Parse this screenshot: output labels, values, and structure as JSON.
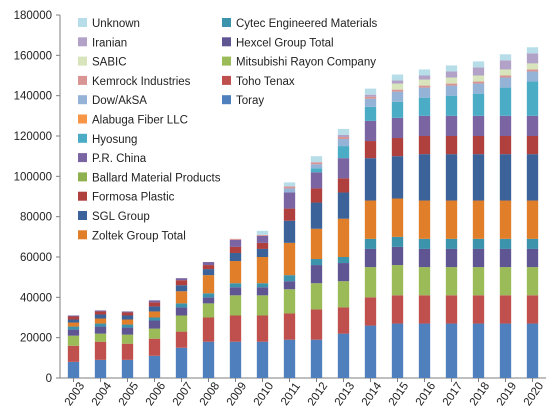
{
  "chart_data": {
    "type": "bar",
    "stacked": true,
    "title": "",
    "xlabel": "",
    "ylabel": "",
    "ylim": [
      0,
      180000
    ],
    "y_ticks": [
      "0",
      "20000",
      "40000",
      "60000",
      "80000",
      "100000",
      "120000",
      "140000",
      "160000",
      "180000"
    ],
    "grid": false,
    "legend_position": "top-left, inside plot, two columns",
    "categories": [
      "2003",
      "2004",
      "2005",
      "2006",
      "2007",
      "2008",
      "2009",
      "2010",
      "2011",
      "2012",
      "2013",
      "2014",
      "2015",
      "2016",
      "2017",
      "2018",
      "2019",
      "2020"
    ],
    "series": [
      {
        "name": "Toray",
        "color": "#4f7fbd",
        "values": [
          8000,
          9000,
          9000,
          11000,
          15000,
          18000,
          18000,
          18000,
          19000,
          19000,
          22000,
          26000,
          27000,
          27000,
          27000,
          27000,
          27000,
          27000
        ]
      },
      {
        "name": "Toho Tenax",
        "color": "#c0504d",
        "values": [
          8000,
          9000,
          8000,
          8500,
          8000,
          12000,
          13000,
          13000,
          13000,
          15000,
          13000,
          14000,
          14000,
          14000,
          14000,
          14000,
          14000,
          14000
        ]
      },
      {
        "name": "Mitsubishi Rayon Company",
        "color": "#9bbb59",
        "values": [
          5000,
          4000,
          4500,
          5000,
          8000,
          7000,
          10000,
          10000,
          12000,
          13000,
          13000,
          15000,
          15000,
          14000,
          14000,
          14000,
          14000,
          14000
        ]
      },
      {
        "name": "Hexcel Group Total",
        "color": "#5f5593",
        "values": [
          3000,
          3500,
          3500,
          4000,
          4000,
          3000,
          4000,
          4000,
          4000,
          9000,
          9000,
          9000,
          9000,
          9000,
          9000,
          9000,
          9000,
          9000
        ]
      },
      {
        "name": "Cytec Engineered Materials",
        "color": "#3c93ac",
        "values": [
          1500,
          1500,
          1500,
          1500,
          2000,
          2000,
          2000,
          2000,
          3000,
          3000,
          3000,
          5000,
          5000,
          5000,
          5000,
          5000,
          5000,
          5000
        ]
      },
      {
        "name": "Zoltek Group Total",
        "color": "#e07e2a",
        "values": [
          2000,
          2500,
          2500,
          3000,
          6000,
          9000,
          11000,
          13000,
          16000,
          15000,
          19000,
          19000,
          19000,
          19000,
          19000,
          19000,
          19000,
          19000
        ]
      },
      {
        "name": "SGL Group",
        "color": "#3c6399",
        "values": [
          1500,
          2000,
          2000,
          2500,
          3000,
          3000,
          4000,
          4000,
          11000,
          13000,
          13000,
          21000,
          21000,
          23000,
          23000,
          23000,
          23000,
          23000
        ]
      },
      {
        "name": "Formosa Plastic",
        "color": "#b0403d",
        "values": [
          1500,
          1500,
          1500,
          2000,
          2500,
          2000,
          3000,
          3000,
          6000,
          7000,
          7000,
          8500,
          9000,
          9000,
          9000,
          9000,
          9000,
          9000
        ]
      },
      {
        "name": "Ballard Material Products",
        "color": "#8fb04f",
        "values": [
          0,
          0,
          0,
          0,
          0,
          0,
          0,
          0,
          0,
          0,
          0,
          0,
          0,
          0,
          0,
          0,
          0,
          0
        ]
      },
      {
        "name": "P.R. China",
        "color": "#7b64a2",
        "values": [
          500,
          500,
          500,
          1000,
          1000,
          1500,
          3500,
          3500,
          8000,
          8000,
          10000,
          10000,
          10000,
          10000,
          10000,
          10000,
          10000,
          10000
        ]
      },
      {
        "name": "Hyosung",
        "color": "#4bacc6",
        "values": [
          0,
          0,
          0,
          0,
          0,
          0,
          0,
          0,
          0,
          2000,
          6000,
          7000,
          8000,
          9000,
          10000,
          11000,
          14000,
          17000
        ]
      },
      {
        "name": "Alabuga Fiber LLC",
        "color": "#f79646",
        "values": [
          0,
          0,
          0,
          0,
          0,
          0,
          0,
          0,
          0,
          0,
          0,
          0,
          0,
          0,
          0,
          0,
          0,
          0
        ]
      },
      {
        "name": "Dow/AkSA",
        "color": "#95b3d7",
        "values": [
          0,
          0,
          0,
          0,
          0,
          0,
          0,
          0,
          2000,
          2000,
          3500,
          4000,
          5000,
          5000,
          5000,
          5000,
          5000,
          5000
        ]
      },
      {
        "name": "Kemrock Industries",
        "color": "#d99594",
        "values": [
          0,
          0,
          0,
          0,
          0,
          0,
          500,
          500,
          1000,
          1000,
          1000,
          1000,
          1000,
          1000,
          1000,
          1000,
          1000,
          1000
        ]
      },
      {
        "name": "SABIC",
        "color": "#d7e4bc",
        "values": [
          0,
          0,
          0,
          0,
          0,
          0,
          0,
          0,
          0,
          0,
          0,
          0,
          3000,
          3000,
          3000,
          3000,
          3000,
          3000
        ]
      },
      {
        "name": "Iranian",
        "color": "#b2a2c7",
        "values": [
          0,
          0,
          0,
          0,
          0,
          0,
          0,
          0,
          0,
          0,
          1000,
          1000,
          1500,
          2000,
          3000,
          4000,
          4500,
          5000
        ]
      },
      {
        "name": "Unknown",
        "color": "#b7dee8",
        "values": [
          0,
          0,
          0,
          0,
          0,
          0,
          0,
          2000,
          2000,
          3000,
          3000,
          3000,
          3000,
          3000,
          3000,
          3000,
          3000,
          3000
        ]
      }
    ],
    "legend_columns": [
      [
        "Unknown",
        "Iranian",
        "SABIC",
        "Kemrock Industries",
        "Dow/AkSA",
        "Alabuga Fiber LLC",
        "Hyosung",
        "P.R. China",
        "Ballard Material Products",
        "Formosa Plastic",
        "SGL Group",
        "Zoltek Group Total"
      ],
      [
        "Cytec Engineered Materials",
        "Hexcel Group Total",
        "Mitsubishi Rayon Company",
        "Toho Tenax",
        "Toray"
      ]
    ]
  }
}
